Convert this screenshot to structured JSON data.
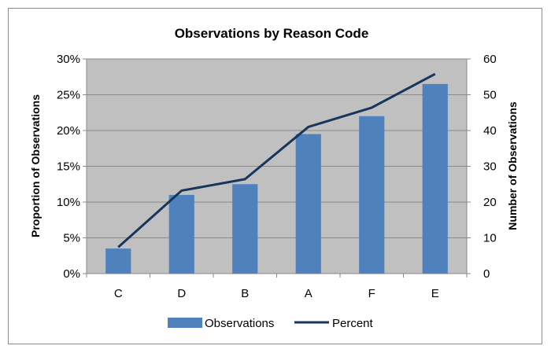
{
  "chart_data": {
    "type": "bar",
    "title": "Observations by Reason Code",
    "xlabel": "",
    "ylabel_left": "Proportion  of Observations",
    "ylabel_right": "Number of Observations",
    "categories": [
      "C",
      "D",
      "B",
      "A",
      "F",
      "E"
    ],
    "series": [
      {
        "name": "Observations",
        "type": "bar",
        "axis": "right",
        "values": [
          7,
          22,
          25,
          39,
          44,
          53
        ]
      },
      {
        "name": "Percent",
        "type": "line",
        "axis": "left",
        "values": [
          0.037,
          0.116,
          0.132,
          0.205,
          0.232,
          0.279
        ]
      }
    ],
    "ylim_left": [
      0,
      0.3
    ],
    "ylim_right": [
      0,
      60
    ],
    "left_ticks": [
      "0%",
      "5%",
      "10%",
      "15%",
      "20%",
      "25%",
      "30%"
    ],
    "right_ticks": [
      "0",
      "10",
      "20",
      "30",
      "40",
      "50",
      "60"
    ],
    "grid": true,
    "legend_position": "bottom",
    "colors": {
      "bar": "#4f81bd",
      "line": "#17365d",
      "plot_background": "#c0c0c0",
      "grid": "#8a8a8a"
    }
  }
}
